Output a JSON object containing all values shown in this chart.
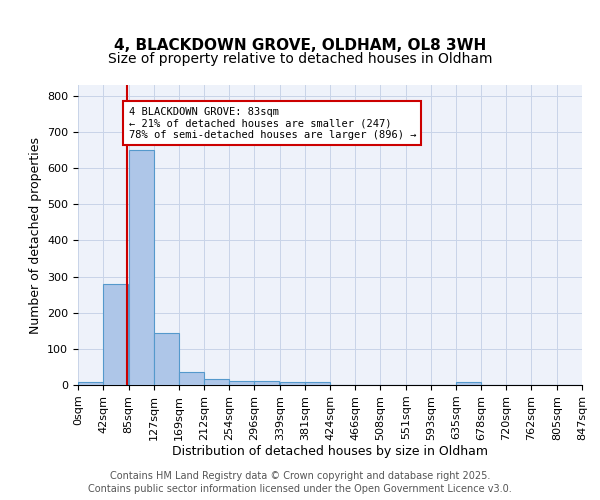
{
  "title1": "4, BLACKDOWN GROVE, OLDHAM, OL8 3WH",
  "title2": "Size of property relative to detached houses in Oldham",
  "xlabel": "Distribution of detached houses by size in Oldham",
  "ylabel": "Number of detached properties",
  "bar_values": [
    8,
    280,
    650,
    143,
    37,
    16,
    12,
    12,
    8,
    8,
    0,
    0,
    0,
    0,
    0,
    7,
    0,
    0,
    0,
    0
  ],
  "bar_left_edges": [
    0,
    42,
    85,
    127,
    169,
    212,
    254,
    296,
    339,
    381,
    424,
    466,
    508,
    551,
    593,
    635,
    678,
    720,
    762,
    805
  ],
  "tick_positions": [
    0,
    42,
    85,
    127,
    169,
    212,
    254,
    296,
    339,
    381,
    424,
    466,
    508,
    551,
    593,
    635,
    678,
    720,
    762,
    805,
    847
  ],
  "bin_width": 42,
  "tick_labels": [
    "0sqm",
    "42sqm",
    "85sqm",
    "127sqm",
    "169sqm",
    "212sqm",
    "254sqm",
    "296sqm",
    "339sqm",
    "381sqm",
    "424sqm",
    "466sqm",
    "508sqm",
    "551sqm",
    "593sqm",
    "635sqm",
    "678sqm",
    "720sqm",
    "762sqm",
    "805sqm",
    "847sqm"
  ],
  "bar_color": "#aec6e8",
  "bar_edge_color": "#5599cc",
  "vline_x": 83,
  "vline_color": "#cc0000",
  "annotation_box_text": "4 BLACKDOWN GROVE: 83sqm\n← 21% of detached houses are smaller (247)\n78% of semi-detached houses are larger (896) →",
  "annotation_box_color": "#cc0000",
  "ylim": [
    0,
    830
  ],
  "yticks": [
    0,
    100,
    200,
    300,
    400,
    500,
    600,
    700,
    800
  ],
  "xlim": [
    0,
    847
  ],
  "grid_color": "#c8d4e8",
  "background_color": "#eef2fa",
  "footer_line1": "Contains HM Land Registry data © Crown copyright and database right 2025.",
  "footer_line2": "Contains public sector information licensed under the Open Government Licence v3.0.",
  "title_fontsize": 11,
  "subtitle_fontsize": 10,
  "axis_label_fontsize": 9,
  "tick_fontsize": 8,
  "footer_fontsize": 7
}
